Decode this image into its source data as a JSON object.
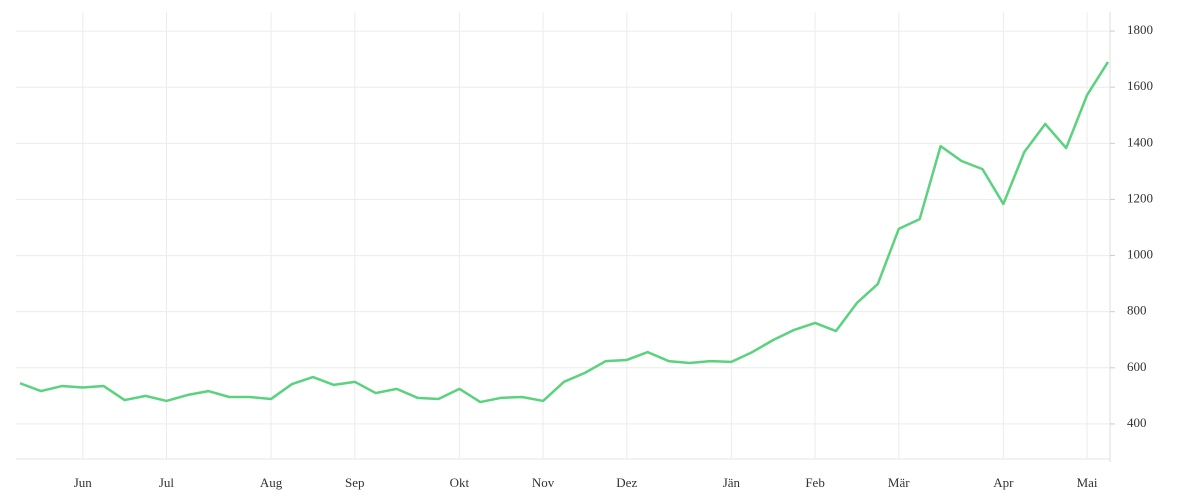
{
  "chart_data": {
    "type": "line",
    "categories": [
      null,
      null,
      null,
      "Jun",
      null,
      null,
      null,
      "Jul",
      null,
      null,
      null,
      null,
      "Aug",
      null,
      null,
      null,
      "Sep",
      null,
      null,
      null,
      null,
      "Okt",
      null,
      null,
      null,
      "Nov",
      null,
      null,
      null,
      "Dez",
      null,
      null,
      null,
      null,
      "Jän",
      null,
      null,
      null,
      "Feb",
      null,
      null,
      null,
      "Mär",
      null,
      null,
      null,
      null,
      "Apr",
      null,
      null,
      null,
      "Mai",
      null
    ],
    "series": [
      {
        "color": "#5ad27e",
        "values": [
          545,
          517,
          535,
          530,
          535,
          485,
          500,
          482,
          503,
          517,
          496,
          496,
          489,
          542,
          567,
          539,
          550,
          510,
          525,
          493,
          489,
          525,
          478,
          493,
          496,
          482,
          550,
          582,
          624,
          628,
          656,
          624,
          617,
          624,
          621,
          656,
          699,
          735,
          760,
          731,
          831,
          899,
          1095,
          1130,
          1390,
          1337,
          1308,
          1184,
          1369,
          1469,
          1383,
          1572,
          1690
        ]
      }
    ],
    "ylim": [
      275,
      1868
    ],
    "yticks": [
      400,
      600,
      800,
      1000,
      1200,
      1400,
      1600,
      1800
    ],
    "grid": true,
    "y_axis_side": "right"
  }
}
